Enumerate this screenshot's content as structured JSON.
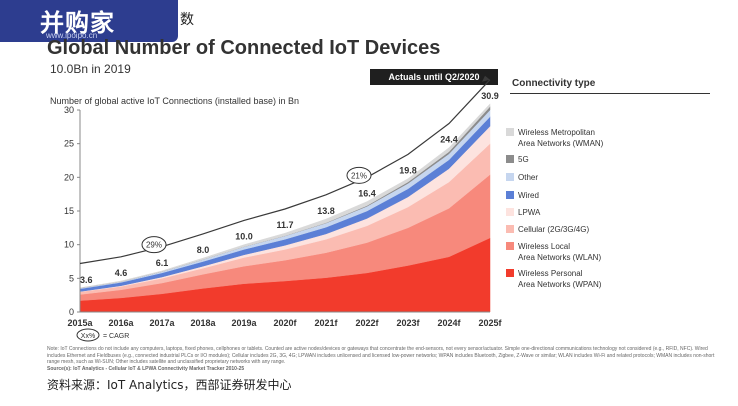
{
  "header": {
    "logo_cn": "并购家",
    "logo_url": "www.ipoipo.cn",
    "tag_fragment": "数"
  },
  "title": "Global Number of Connected IoT Devices",
  "subtitle": "10.0Bn in 2019",
  "actuals_badge": "Actuals until Q2/2020",
  "legend_title": "Connectivity type",
  "cagr_legend": "Xx%",
  "cagr_legend_text": "= CAGR",
  "note": "Note: IoT Connections do not include any computers, laptops, fixed phones, cellphones or tablets. Counted are active nodes/devices or gateways that concentrate the end-sensors, not every sensor/actuator. Simple one-directional communications technology not considered (e.g., RFID, NFC). Wired includes Ethernet and Fieldbuses (e.g., connected industrial PLCs or I/O modules); Cellular includes 2G, 3G, 4G; LPWAN includes unlicensed and licensed low-power networks; WPAN includes Bluetooth, Zigbee, Z-Wave or similar; WLAN includes Wi-Fi and related protocols; WMAN includes non-short range mesh, such as Wi-SUN; Other includes satellite and unclassified proprietary networks with any range.",
  "source_note": "Source(s): IoT Analytics - Cellular IoT & LPWA Connectivity Market Tracker 2010-25",
  "source_cn": "资料来源：IoT Analytics，西部证券研发中心",
  "colors": {
    "trend_line": "#3a3a3a",
    "axis": "#888888",
    "actuals_bg": "#1f1f1f"
  },
  "chart_data": {
    "type": "area",
    "title": "Global Number of Connected IoT Devices",
    "ylabel": "Number of global active IoT Connections (installed base) in Bn",
    "categories": [
      "2015a",
      "2016a",
      "2017a",
      "2018a",
      "2019a",
      "2020f",
      "2021f",
      "2022f",
      "2023f",
      "2024f",
      "2025f"
    ],
    "ylim": [
      0,
      30
    ],
    "yticks": [
      0,
      5,
      10,
      15,
      20,
      25,
      30
    ],
    "totals": [
      3.6,
      4.6,
      6.1,
      8.0,
      10.0,
      11.7,
      13.8,
      16.4,
      19.8,
      24.4,
      30.9
    ],
    "stacked": true,
    "series": [
      {
        "name": "Wireless Personal Area Networks (WPAN)",
        "color": "#f23b2c",
        "values": [
          1.7,
          2.1,
          2.7,
          3.5,
          4.2,
          4.6,
          5.1,
          5.8,
          6.9,
          8.2,
          11.0
        ]
      },
      {
        "name": "Wireless Local Area Networks (WLAN)",
        "color": "#f7897c",
        "values": [
          0.9,
          1.2,
          1.6,
          2.1,
          2.6,
          3.1,
          3.7,
          4.5,
          5.6,
          7.2,
          9.4
        ]
      },
      {
        "name": "Cellular (2G/3G/4G)",
        "color": "#fbbcb2",
        "values": [
          0.4,
          0.5,
          0.7,
          0.9,
          1.3,
          1.6,
          2.0,
          2.5,
          3.1,
          3.9,
          4.6
        ]
      },
      {
        "name": "LPWA",
        "color": "#fde3df",
        "values": [
          0.05,
          0.1,
          0.2,
          0.3,
          0.4,
          0.6,
          0.8,
          1.1,
          1.5,
          2.0,
          2.6
        ]
      },
      {
        "name": "Wired",
        "color": "#5b7fd6",
        "values": [
          0.4,
          0.5,
          0.6,
          0.7,
          0.8,
          0.9,
          1.0,
          1.1,
          1.2,
          1.3,
          1.4
        ]
      },
      {
        "name": "Other",
        "color": "#c6d6ef",
        "values": [
          0.1,
          0.1,
          0.2,
          0.3,
          0.4,
          0.5,
          0.6,
          0.7,
          0.8,
          0.9,
          1.0
        ]
      },
      {
        "name": "5G",
        "color": "#8c8c8c",
        "values": [
          0,
          0,
          0,
          0,
          0,
          0.02,
          0.05,
          0.1,
          0.2,
          0.3,
          0.5
        ]
      },
      {
        "name": "Wireless Metropolitan Area Networks (WMAN)",
        "color": "#d9d9d9",
        "values": [
          0.05,
          0.1,
          0.1,
          0.2,
          0.3,
          0.38,
          0.55,
          0.6,
          0.5,
          0.6,
          0.4
        ]
      }
    ],
    "cagr_annotations": [
      {
        "label": "29%",
        "at": "2017a"
      },
      {
        "label": "21%",
        "at": "2022f"
      }
    ],
    "legend_entries": [
      {
        "label": "Wireless Metropolitan\nArea Networks (WMAN)",
        "color": "#d9d9d9"
      },
      {
        "label": "5G",
        "color": "#8c8c8c"
      },
      {
        "label": "Other",
        "color": "#c6d6ef"
      },
      {
        "label": "Wired",
        "color": "#5b7fd6"
      },
      {
        "label": "LPWA",
        "color": "#fde3df"
      },
      {
        "label": "Cellular (2G/3G/4G)",
        "color": "#fbbcb2"
      },
      {
        "label": "Wireless Local\nArea Networks (WLAN)",
        "color": "#f7897c"
      },
      {
        "label": "Wireless Personal\nArea Networks (WPAN)",
        "color": "#f23b2c"
      }
    ],
    "legend_placement": "right",
    "grid": false
  }
}
